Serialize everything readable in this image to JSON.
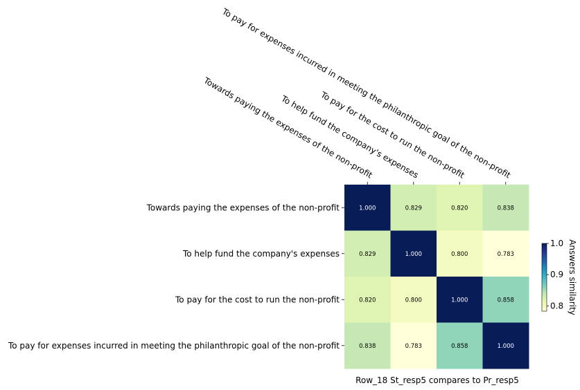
{
  "chart_data": {
    "type": "heatmap",
    "rows": [
      "Towards paying the expenses of the non-profit",
      "To help fund the company's expenses",
      "To pay for the cost to run the non-profit",
      "To pay for expenses incurred in meeting the philanthropic goal of the non-profit"
    ],
    "columns": [
      "Towards paying the expenses of the non-profit",
      "To help fund the company's expenses",
      "To pay for the cost to run the non-profit",
      "To pay for expenses incurred in meeting the philanthropic goal of the non-profit"
    ],
    "values": [
      [
        1.0,
        0.829,
        0.82,
        0.838
      ],
      [
        0.829,
        1.0,
        0.8,
        0.783
      ],
      [
        0.82,
        0.8,
        1.0,
        0.858
      ],
      [
        0.838,
        0.783,
        0.858,
        1.0
      ]
    ],
    "value_labels": [
      [
        "1.000",
        "0.829",
        "0.820",
        "0.838"
      ],
      [
        "0.829",
        "1.000",
        "0.800",
        "0.783"
      ],
      [
        "0.820",
        "0.800",
        "1.000",
        "0.858"
      ],
      [
        "0.838",
        "0.783",
        "0.858",
        "1.000"
      ]
    ],
    "xlabel": "Row_18 St_resp5 compares to Pr_resp5",
    "colorbar": {
      "label": "Answers similarity",
      "range": [
        0.783,
        1.0
      ],
      "ticks": [
        0.8,
        0.9,
        1.0
      ],
      "tick_labels": [
        "0.8",
        "0.9",
        "1.0"
      ],
      "colormap": "YlGnBu",
      "colors": [
        "#ffffd9",
        "#edf8b1",
        "#c7e9b4",
        "#7fcdbb",
        "#41b6c4",
        "#1d91c0",
        "#225ea8",
        "#253494",
        "#081d58"
      ]
    },
    "column_label_position": "top",
    "grid": false
  }
}
